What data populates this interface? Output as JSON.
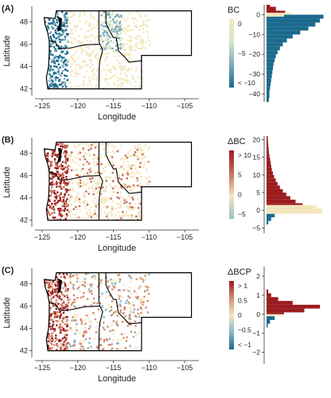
{
  "figure": {
    "colors": {
      "dark_blue": "#1b6a8e",
      "light": "#f3e7bd",
      "dark_red": "#9b1c1f",
      "region_fill": "#ffffff",
      "border": "#000000"
    }
  },
  "chart_data": [
    {
      "type": "map",
      "panel": "(A)",
      "xlabel": "Longitude",
      "ylabel": "Latitude",
      "x_ticks": [
        -125,
        -120,
        -115,
        -110,
        -105
      ],
      "y_ticks": [
        42,
        44,
        46,
        48
      ],
      "legend": {
        "title": "BC",
        "tick_labels": [
          "0",
          "−5",
          "< −10"
        ],
        "colors": [
          "#f3e7bd",
          "#d9e6c6",
          "#7aa9bb",
          "#1b6a8e"
        ]
      },
      "histogram": {
        "type": "bar",
        "orientation": "horizontal",
        "y_ticks": [
          0,
          -10,
          -20,
          -30,
          -40
        ],
        "ylim": [
          -44,
          5
        ],
        "bins_blue": [
          [
            -44,
            -42,
            0.4
          ],
          [
            -42,
            -40,
            0.5
          ],
          [
            -40,
            -38,
            0.5
          ],
          [
            -38,
            -36,
            0.6
          ],
          [
            -36,
            -34,
            0.7
          ],
          [
            -34,
            -32,
            0.8
          ],
          [
            -32,
            -30,
            0.9
          ],
          [
            -30,
            -28,
            1.0
          ],
          [
            -28,
            -26,
            1.1
          ],
          [
            -26,
            -24,
            1.2
          ],
          [
            -24,
            -22,
            1.4
          ],
          [
            -22,
            -20,
            1.6
          ],
          [
            -20,
            -18,
            1.9
          ],
          [
            -18,
            -16,
            2.3
          ],
          [
            -16,
            -14,
            2.8
          ],
          [
            -14,
            -12,
            3.5
          ],
          [
            -12,
            -10,
            4.5
          ],
          [
            -10,
            -8,
            5.8
          ],
          [
            -8,
            -6,
            7.2
          ],
          [
            -6,
            -4,
            8.4
          ],
          [
            -4,
            -2,
            9.2
          ],
          [
            -2,
            0,
            9.8
          ]
        ],
        "bins_light": [
          [
            0,
            1,
            4.3
          ],
          [
            -1,
            0,
            3.0
          ]
        ],
        "bins_red": [
          [
            0,
            2,
            3.2
          ],
          [
            2,
            4,
            1.6
          ],
          [
            4,
            5,
            0.6
          ]
        ],
        "xmax": 10
      }
    },
    {
      "type": "map",
      "panel": "(B)",
      "xlabel": "Longitude",
      "ylabel": "Latitude",
      "x_ticks": [
        -125,
        -120,
        -115,
        -110,
        -105
      ],
      "y_ticks": [
        42,
        44,
        46,
        48
      ],
      "legend": {
        "title": "ΔBC",
        "tick_labels": [
          "> 10",
          "5",
          "0",
          "−5"
        ],
        "colors": [
          "#9b1c1f",
          "#c86e5a",
          "#f3e7bd",
          "#9bbfcc"
        ]
      },
      "histogram": {
        "type": "bar",
        "orientation": "horizontal",
        "y_ticks": [
          20,
          15,
          10,
          5,
          0,
          -5
        ],
        "ylim": [
          -6.5,
          21
        ],
        "bins_red": [
          [
            20,
            21,
            0.2
          ],
          [
            19,
            20,
            0.25
          ],
          [
            18,
            19,
            0.3
          ],
          [
            17,
            18,
            0.35
          ],
          [
            16,
            17,
            0.4
          ],
          [
            15,
            16,
            0.5
          ],
          [
            14,
            15,
            0.6
          ],
          [
            13,
            14,
            0.7
          ],
          [
            12,
            13,
            0.8
          ],
          [
            11,
            12,
            0.9
          ],
          [
            10,
            11,
            1.1
          ],
          [
            9,
            10,
            1.3
          ],
          [
            8,
            9,
            1.6
          ],
          [
            7,
            8,
            1.9
          ],
          [
            6,
            7,
            2.3
          ],
          [
            5,
            6,
            2.8
          ],
          [
            4,
            5,
            3.4
          ],
          [
            3,
            4,
            4.1
          ],
          [
            2,
            3,
            5.0
          ],
          [
            1,
            2,
            6.2
          ],
          [
            0,
            1,
            7.8
          ]
        ],
        "bins_light": [
          [
            0.5,
            1.5,
            8.6
          ],
          [
            -1,
            0.5,
            9.6
          ]
        ],
        "bins_blue": [
          [
            -2,
            -1,
            1.4
          ],
          [
            -3,
            -2,
            0.8
          ],
          [
            -4,
            -3,
            0.3
          ]
        ],
        "xmax": 10
      }
    },
    {
      "type": "map",
      "panel": "(C)",
      "xlabel": "Longitude",
      "ylabel": "Latitude",
      "x_ticks": [
        -125,
        -120,
        -115,
        -110,
        -105
      ],
      "y_ticks": [
        42,
        44,
        46,
        48
      ],
      "legend": {
        "title": "ΔBCP",
        "tick_labels": [
          "> 1",
          "0.5",
          "0",
          "−0.5",
          "< −1"
        ],
        "colors": [
          "#9b1c1f",
          "#d48e70",
          "#f3e7bd",
          "#8ab5c5",
          "#1b6a8e"
        ]
      },
      "histogram": {
        "type": "bar",
        "orientation": "horizontal",
        "y_ticks": [
          2,
          1,
          0,
          -1,
          -2
        ],
        "ylim": [
          -2.6,
          2.5
        ],
        "bins_red": [
          [
            1.1,
            1.3,
            0.3
          ],
          [
            0.9,
            1.1,
            0.8
          ],
          [
            0.7,
            0.9,
            2.0
          ],
          [
            0.5,
            0.7,
            4.5
          ],
          [
            0.3,
            0.5,
            9.2
          ],
          [
            0.1,
            0.3,
            6.5
          ],
          [
            0.0,
            0.1,
            3.0
          ]
        ],
        "bins_light": [
          [
            -0.1,
            0.0,
            2.6
          ]
        ],
        "bins_blue": [
          [
            -0.3,
            -0.1,
            1.4
          ],
          [
            -0.5,
            -0.3,
            0.6
          ],
          [
            -0.7,
            -0.5,
            0.2
          ]
        ],
        "xmax": 10
      }
    }
  ]
}
